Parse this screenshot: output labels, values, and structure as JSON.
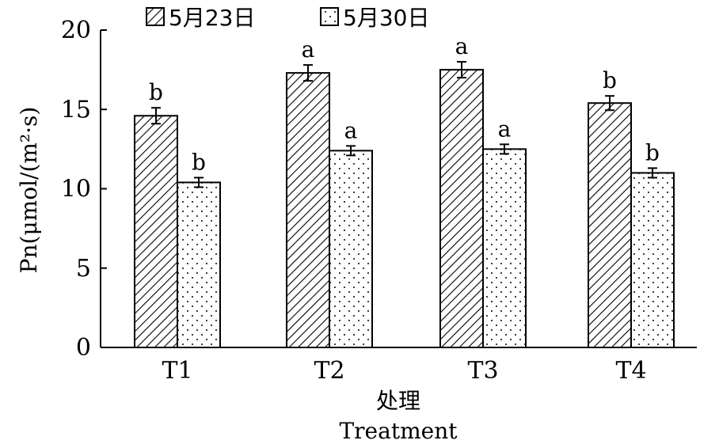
{
  "chart_data": {
    "type": "bar",
    "categories": [
      "T1",
      "T2",
      "T3",
      "T4"
    ],
    "series": [
      {
        "name": "5月23日",
        "pattern": "hatch",
        "values": [
          14.6,
          17.3,
          17.5,
          15.4
        ],
        "errors": [
          0.5,
          0.5,
          0.5,
          0.45
        ],
        "significance": [
          "b",
          "a",
          "a",
          "b"
        ]
      },
      {
        "name": "5月30日",
        "pattern": "dots",
        "values": [
          10.4,
          12.4,
          12.5,
          11.0
        ],
        "errors": [
          0.3,
          0.3,
          0.3,
          0.3
        ],
        "significance": [
          "b",
          "a",
          "a",
          "b"
        ]
      }
    ],
    "xlabel": "处理",
    "xlabel_en": "Treatment",
    "ylabel": "Pn(μmol/(m²·s)",
    "ylim": [
      0,
      20
    ],
    "yticks": [
      0,
      5,
      10,
      15,
      20
    ],
    "grid": false,
    "legend": "top"
  }
}
